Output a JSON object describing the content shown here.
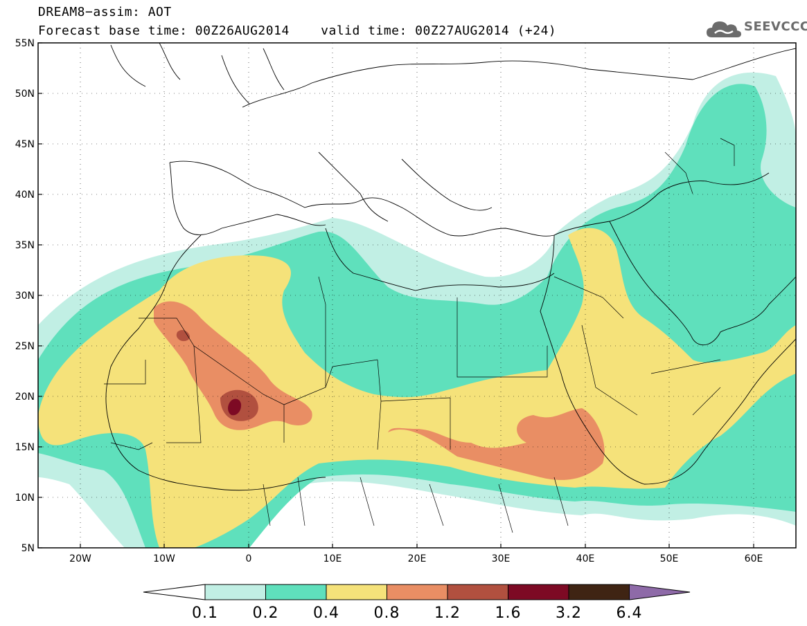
{
  "title": {
    "line1": "DREAM8−assim: AOT",
    "line2_base": "Forecast base time: 00Z26AUG2014",
    "line2_valid": "valid time: 00Z27AUG2014 (+24)"
  },
  "logo": {
    "text": "SEEVCCC",
    "icon": "cloud-icon"
  },
  "axes": {
    "lat_labels": [
      "55N",
      "50N",
      "45N",
      "40N",
      "35N",
      "30N",
      "25N",
      "20N",
      "15N",
      "10N",
      "5N"
    ],
    "lon_labels": [
      "20W",
      "10W",
      "0",
      "10E",
      "20E",
      "30E",
      "40E",
      "50E",
      "60E"
    ],
    "lat_range": [
      5,
      55
    ],
    "lon_range": [
      -25,
      65
    ]
  },
  "legend": {
    "labels": [
      "0.1",
      "0.2",
      "0.4",
      "0.8",
      "1.2",
      "1.6",
      "3.2",
      "6.4"
    ],
    "colors": [
      "#ffffff",
      "#c1efe4",
      "#5fe0bc",
      "#f5e27a",
      "#e98e64",
      "#b1503f",
      "#7d0a24",
      "#3f2413",
      "#8e6aa8"
    ]
  }
}
